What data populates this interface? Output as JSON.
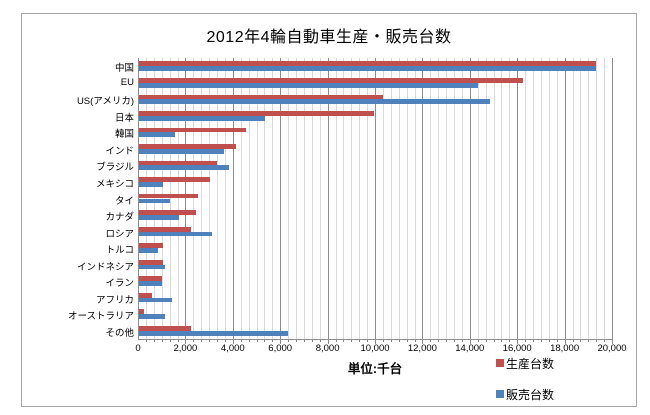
{
  "chart_data": {
    "type": "bar",
    "orientation": "horizontal",
    "title": "2012年4輪自動車生産・販売台数",
    "xlabel": "単位:千台",
    "unit": "千台",
    "categories": [
      "中国",
      "EU",
      "US(アメリカ)",
      "日本",
      "韓国",
      "インド",
      "ブラジル",
      "メキシコ",
      "タイ",
      "カナダ",
      "ロシア",
      "トルコ",
      "インドネシア",
      "イラン",
      "アフリカ",
      "オーストラリア",
      "その他"
    ],
    "series": [
      {
        "name": "生産台数",
        "color": "#c0504d",
        "values": [
          19300,
          16200,
          10300,
          9900,
          4500,
          4100,
          3300,
          3000,
          2500,
          2400,
          2200,
          1000,
          1000,
          950,
          550,
          200,
          2200
        ]
      },
      {
        "name": "販売台数",
        "color": "#4f81bd",
        "values": [
          19300,
          14300,
          14800,
          5300,
          1500,
          3600,
          3800,
          1000,
          1300,
          1700,
          3100,
          800,
          1100,
          950,
          1400,
          1100,
          6300
        ]
      }
    ],
    "xlim": [
      0,
      20000
    ],
    "x_ticks": [
      "0",
      "2,000",
      "4,000",
      "6,000",
      "8,000",
      "10,000",
      "12,000",
      "14,000",
      "16,000",
      "18,000",
      "20,000"
    ],
    "x_major_unit": 2000,
    "x_minor_unit": 333.33,
    "grid": true,
    "gridline_minor_color": "#d9d9d9",
    "gridline_major_color": "#8c8c8c",
    "legend_position": "bottom-right"
  }
}
